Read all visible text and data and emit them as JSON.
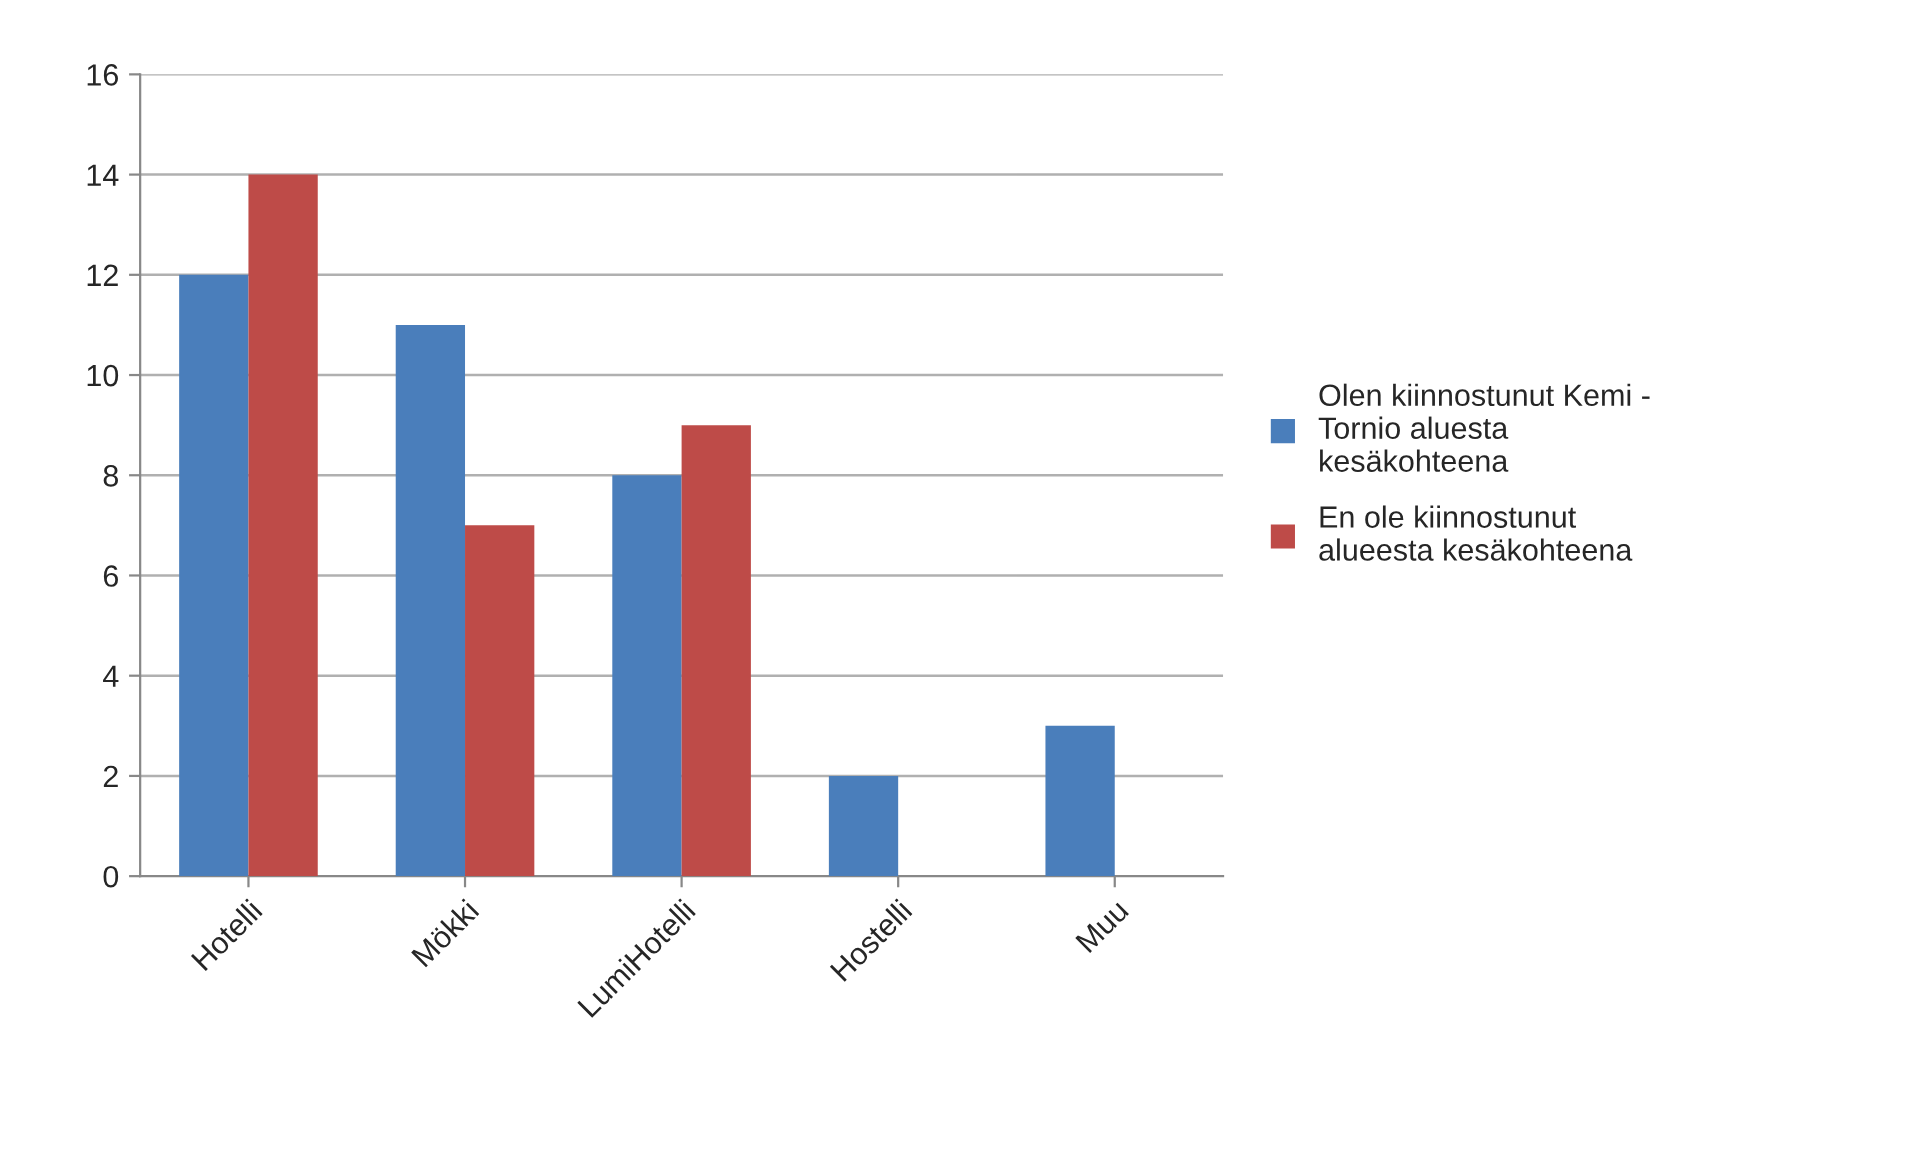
{
  "chart_data": {
    "type": "bar",
    "categories": [
      "Hotelli",
      "Mökki",
      "LumiHotelli",
      "Hostelli",
      "Muu"
    ],
    "series": [
      {
        "name": "Olen kiinnostunut Kemi - Tornio aluesta kesäkohteena",
        "color": "#4a7ebb",
        "values": [
          12,
          11,
          8,
          2,
          3
        ]
      },
      {
        "name": "En ole kiinnostunut alueesta kesäkohteena",
        "color": "#be4b48",
        "values": [
          14,
          7,
          9,
          null,
          null
        ]
      }
    ],
    "ylim": [
      0,
      16
    ],
    "yticks": [
      0,
      2,
      4,
      6,
      8,
      10,
      12,
      14,
      16
    ],
    "grid": "y",
    "legend": "right"
  }
}
